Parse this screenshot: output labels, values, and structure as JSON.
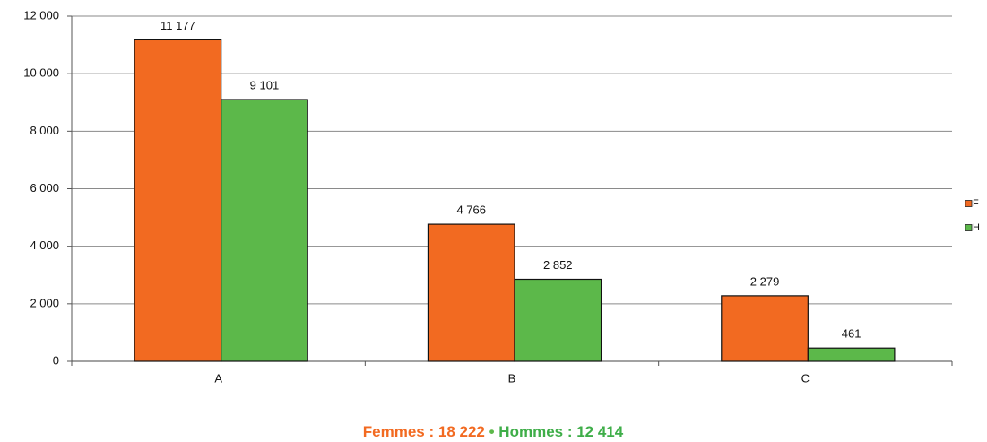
{
  "chart_data": {
    "type": "bar",
    "categories": [
      "A",
      "B",
      "C"
    ],
    "series": [
      {
        "name": "F",
        "color": "#f26a21",
        "values": [
          11177,
          4766,
          2279
        ],
        "value_labels": [
          "11 177",
          "4 766",
          "2 279"
        ]
      },
      {
        "name": "H",
        "color": "#5cb84a",
        "values": [
          9101,
          2852,
          461
        ],
        "value_labels": [
          "9 101",
          "2 852",
          "461"
        ]
      }
    ],
    "ylim": [
      0,
      12000
    ],
    "yticks": [
      0,
      {
        "value": 2000,
        "label": "2 000"
      },
      {
        "value": 4000,
        "label": "4 000"
      },
      {
        "value": 6000,
        "label": "6 000"
      },
      {
        "value": 8000,
        "label": "8 000"
      },
      {
        "value": 10000,
        "label": "10 000"
      },
      {
        "value": 12000,
        "label": "12 000"
      }
    ],
    "grid": true,
    "legend": "right",
    "footer": [
      {
        "text": "Femmes : 18 222",
        "color": "#f26a21"
      },
      {
        "text": "•",
        "color": "#5cb84a"
      },
      {
        "text": "Hommes : 12 414",
        "color": "#3fae49"
      }
    ]
  }
}
